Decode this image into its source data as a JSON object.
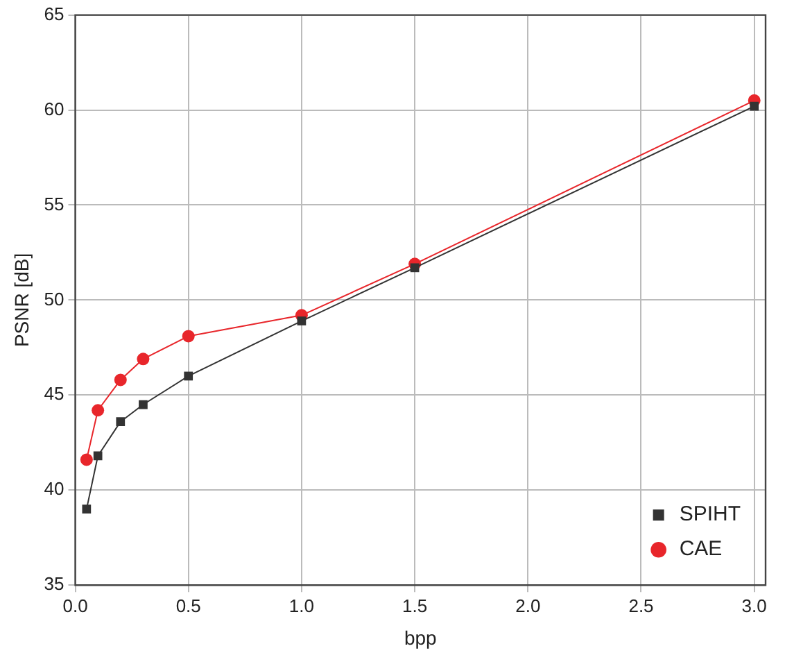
{
  "chart_data": {
    "type": "line",
    "xlabel": "bpp",
    "ylabel": "PSNR [dB]",
    "xlim": [
      0,
      3.05
    ],
    "xticks": [
      {
        "value": 0,
        "label": "0.0"
      },
      {
        "value": 0.5,
        "label": "0.5"
      },
      {
        "value": 1,
        "label": "1.0"
      },
      {
        "value": 1.5,
        "label": "1.5"
      },
      {
        "value": 2,
        "label": "2.0"
      },
      {
        "value": 2.5,
        "label": "2.5"
      },
      {
        "value": 3,
        "label": "3.0"
      }
    ],
    "ylim": [
      35,
      65
    ],
    "yticks": [
      35,
      40,
      45,
      50,
      55,
      60,
      65
    ],
    "grid": true,
    "legend": "bottom right",
    "series": [
      {
        "name": "SPIHT",
        "color": "#333333",
        "marker": "square",
        "x": [
          0.05,
          0.1,
          0.2,
          0.3,
          0.5,
          1,
          1.5,
          3
        ],
        "values": [
          39.0,
          41.8,
          43.6,
          44.5,
          46.0,
          48.9,
          51.7,
          60.2
        ]
      },
      {
        "name": "CAE",
        "color": "#e8262b",
        "marker": "circle",
        "x": [
          0.05,
          0.1,
          0.2,
          0.3,
          0.5,
          1,
          1.5,
          3
        ],
        "values": [
          41.6,
          44.2,
          45.8,
          46.9,
          48.1,
          49.2,
          51.9,
          60.5
        ]
      }
    ]
  }
}
